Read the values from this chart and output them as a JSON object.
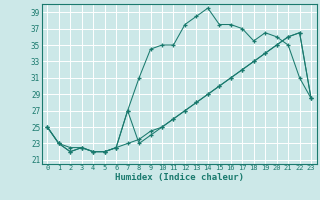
{
  "xlabel": "Humidex (Indice chaleur)",
  "background_color": "#cce8e8",
  "grid_color": "#ffffff",
  "line_color": "#1a7a6e",
  "xlim": [
    -0.5,
    23.5
  ],
  "ylim": [
    20.5,
    40
  ],
  "yticks": [
    21,
    23,
    25,
    27,
    29,
    31,
    33,
    35,
    37,
    39
  ],
  "xticks": [
    0,
    1,
    2,
    3,
    4,
    5,
    6,
    7,
    8,
    9,
    10,
    11,
    12,
    13,
    14,
    15,
    16,
    17,
    18,
    19,
    20,
    21,
    22,
    23
  ],
  "line1_x": [
    0,
    1,
    2,
    3,
    4,
    5,
    6,
    7,
    8,
    9,
    10,
    11,
    12,
    13,
    14,
    15,
    16,
    17,
    18,
    19,
    20,
    21,
    22,
    23
  ],
  "line1_y": [
    25,
    23,
    22.5,
    22.5,
    22,
    22,
    22.5,
    27,
    31,
    34.5,
    35,
    35,
    37.5,
    38.5,
    39.5,
    37.5,
    37.5,
    37,
    35.5,
    36.5,
    36,
    35,
    31,
    28.5
  ],
  "line2_x": [
    0,
    1,
    2,
    3,
    4,
    5,
    6,
    7,
    8,
    9,
    10,
    11,
    12,
    13,
    14,
    15,
    16,
    17,
    18,
    19,
    20,
    21,
    22,
    23
  ],
  "line2_y": [
    25,
    23,
    22,
    22.5,
    22,
    22,
    22.5,
    27,
    23,
    24,
    25,
    26,
    27,
    28,
    29,
    30,
    31,
    32,
    33,
    34,
    35,
    36,
    36.5,
    28.5
  ],
  "line3_x": [
    0,
    1,
    2,
    3,
    4,
    5,
    6,
    7,
    8,
    9,
    10,
    11,
    12,
    13,
    14,
    15,
    16,
    17,
    18,
    19,
    20,
    21,
    22,
    23
  ],
  "line3_y": [
    25,
    23,
    22,
    22.5,
    22,
    22,
    22.5,
    23,
    23.5,
    24.5,
    25,
    26,
    27,
    28,
    29,
    30,
    31,
    32,
    33,
    34,
    35,
    36,
    36.5,
    28.5
  ]
}
